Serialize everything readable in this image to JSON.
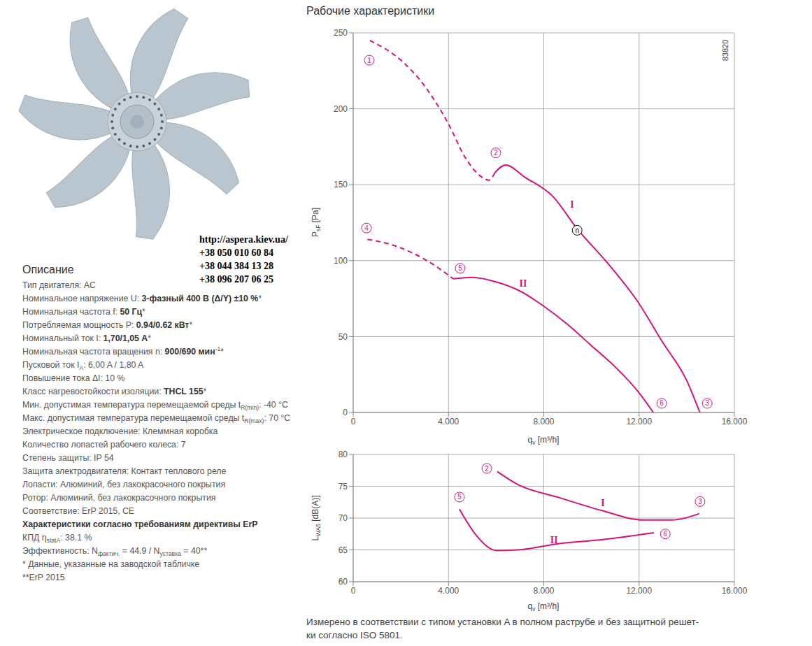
{
  "chart_data": [
    {
      "type": "line",
      "title": "Рабочие характеристики",
      "x_label": {
        "symbol": "q",
        "subscript": "v",
        "unit": "[m³/h]"
      },
      "y_label": {
        "symbol": "P",
        "subscript": "sF",
        "unit": "[Pa]"
      },
      "note": "83820",
      "xlim": [
        0,
        16000
      ],
      "ylim": [
        0,
        250
      ],
      "xticks": [
        0,
        {
          "value": 4000,
          "label": "4.000"
        },
        {
          "value": 8000,
          "label": "8.000"
        },
        {
          "value": 12000,
          "label": "12.000"
        },
        {
          "value": 16000,
          "label": "16.000"
        }
      ],
      "yticks": [
        0,
        50,
        100,
        150,
        200,
        250
      ],
      "grid": true,
      "series": [
        {
          "line_style": "dashed",
          "color": "#d4137b",
          "x": [
            700,
            2000,
            3000,
            4000,
            4700,
            5400,
            5700,
            5950
          ],
          "values": [
            245,
            232,
            215,
            190,
            168,
            155,
            153,
            158
          ]
        },
        {
          "line_style": "solid",
          "color": "#d4137b",
          "x": [
            5950,
            6400,
            7200,
            8400,
            9400,
            10700,
            11900,
            13000,
            14000,
            14550
          ],
          "values": [
            158,
            163,
            155,
            142,
            121,
            98,
            74,
            46,
            21,
            0
          ]
        },
        {
          "line_style": "dashed",
          "color": "#d4137b",
          "x": [
            600,
            1500,
            2500,
            3500,
            4200
          ],
          "values": [
            114,
            111,
            105,
            96,
            88
          ]
        },
        {
          "line_style": "solid",
          "color": "#d4137b",
          "x": [
            4200,
            5000,
            6000,
            7000,
            8000,
            9000,
            10000,
            11000,
            12000,
            12600
          ],
          "values": [
            88,
            89,
            86,
            80,
            70,
            58,
            44,
            30,
            13,
            0
          ]
        }
      ],
      "annotations": [
        {
          "text": "1",
          "x": 675,
          "y": 232,
          "marker": "circle",
          "color": "#d4137b"
        },
        {
          "text": "2",
          "x": 5990,
          "y": 171,
          "marker": "circle",
          "color": "#d4137b"
        },
        {
          "text": "3",
          "x": 14860,
          "y": 6,
          "marker": "circle",
          "color": "#d4137b"
        },
        {
          "text": "4",
          "x": 560,
          "y": 121.5,
          "marker": "circle",
          "color": "#d4137b"
        },
        {
          "text": "5",
          "x": 4490,
          "y": 95,
          "marker": "circle",
          "color": "#d4137b"
        },
        {
          "text": "6",
          "x": 12950,
          "y": 6,
          "marker": "circle",
          "color": "#d4137b"
        },
        {
          "text": "I",
          "x": 9190,
          "y": 137,
          "color": "#d4137b"
        },
        {
          "text": "II",
          "x": 7135,
          "y": 85,
          "color": "#d4137b"
        },
        {
          "text": "n",
          "x": 9400,
          "y": 120,
          "marker": "circle",
          "color": "#000000"
        }
      ]
    },
    {
      "type": "line",
      "x_label": {
        "symbol": "q",
        "subscript": "v",
        "unit": "[m³/h]"
      },
      "y_label": {
        "symbol": "L",
        "subscript": "WA5",
        "unit": "[dB(A)]"
      },
      "xlim": [
        0,
        16000
      ],
      "ylim": [
        60,
        80
      ],
      "xticks": [
        0,
        {
          "value": 4000,
          "label": "4.000"
        },
        {
          "value": 8000,
          "label": "8.000"
        },
        {
          "value": 12000,
          "label": "12.000"
        },
        {
          "value": 16000,
          "label": "16.000"
        }
      ],
      "yticks": [
        60,
        65,
        70,
        75,
        80
      ],
      "grid": true,
      "series": [
        {
          "line_style": "solid",
          "color": "#d4137b",
          "x": [
            6050,
            6900,
            8660,
            10420,
            12180,
            13360,
            14530
          ],
          "values": [
            77.3,
            75.3,
            73.2,
            71.2,
            69.7,
            69.7,
            70.7
          ]
        },
        {
          "line_style": "solid",
          "color": "#d4137b",
          "x": [
            4460,
            5140,
            6020,
            6900,
            8660,
            10420,
            12620
          ],
          "values": [
            71.4,
            67.4,
            64.9,
            65,
            66,
            66.6,
            67.7
          ]
        }
      ],
      "annotations": [
        {
          "text": "2",
          "x": 5610,
          "y": 77.8,
          "marker": "circle",
          "color": "#d4137b"
        },
        {
          "text": "5",
          "x": 4460,
          "y": 73.3,
          "marker": "circle",
          "color": "#d4137b"
        },
        {
          "text": "3",
          "x": 14560,
          "y": 72.6,
          "marker": "circle",
          "color": "#d4137b"
        },
        {
          "text": "6",
          "x": 13100,
          "y": 67.5,
          "marker": "circle",
          "color": "#d4137b"
        },
        {
          "text": "I",
          "x": 10480,
          "y": 72.4,
          "color": "#d4137b"
        },
        {
          "text": "II",
          "x": 8430,
          "y": 66.6,
          "color": "#d4137b"
        }
      ]
    }
  ],
  "contacts": [
    "http://aspera.kiev.ua/",
    "+38 050 010 60 84",
    "+38 044 384 13 28",
    "+38 096 207 06 25"
  ],
  "description": {
    "heading": "Описание",
    "lines": [
      [
        {
          "text": "Тип двигателя: AC"
        }
      ],
      [
        {
          "text": "Номинальное напряжение U: "
        },
        {
          "text": "3-фазный 400 В (Δ/Y) ±10 %",
          "style": "bold"
        },
        {
          "text": "*"
        }
      ],
      [
        {
          "text": "Номинальная частота f: "
        },
        {
          "text": "50 Гц",
          "style": "bold"
        },
        {
          "text": "*"
        }
      ],
      [
        {
          "text": "Потребляемая мощность P: "
        },
        {
          "text": "0.94/0.62 кВт",
          "style": "bold"
        },
        {
          "text": "*"
        }
      ],
      [
        {
          "text": "Номинальный ток I: "
        },
        {
          "text": "1,70/1,05 А",
          "style": "bold"
        },
        {
          "text": "*"
        }
      ],
      [
        {
          "text": "Номинальная частота вращения n: "
        },
        {
          "text": "900/690 мин",
          "style": "bold"
        },
        {
          "text": "-1",
          "style": "sup"
        },
        {
          "text": "*"
        }
      ],
      [
        {
          "text": "Пусковой ток I"
        },
        {
          "text": "A",
          "style": "sub"
        },
        {
          "text": ": 6,00 A / 1,80 A"
        }
      ],
      [
        {
          "text": "Повышение тока ΔI: 10 %"
        }
      ],
      [
        {
          "text": "Класс нагревостойкости изоляции: "
        },
        {
          "text": "THCL 155",
          "style": "bold"
        },
        {
          "text": "*"
        }
      ],
      [
        {
          "text": "Мин. допустимая температура перемещаемой среды t"
        },
        {
          "text": "R(min)",
          "style": "sub"
        },
        {
          "text": ": -40 °C"
        }
      ],
      [
        {
          "text": "Макс. допустимая температура перемещаемой среды t"
        },
        {
          "text": "R(max)",
          "style": "sub"
        },
        {
          "text": ": 70 °C"
        }
      ],
      [
        {
          "text": "Электрическое подключение: Клеммная коробка"
        }
      ],
      [
        {
          "text": "Количество лопастей рабочего колеса: 7"
        }
      ],
      [
        {
          "text": "Степень защиты: IP 54"
        }
      ],
      [
        {
          "text": "Защита электродвигателя: Контакт теплового реле"
        }
      ],
      [
        {
          "text": "Лопасти: Алюминий, без лакокрасочного покрытия"
        }
      ],
      [
        {
          "text": "Ротор: Алюминий, без лакокрасочного покрытия"
        }
      ],
      [
        {
          "text": "Соответствие: ErP 2015, CE"
        }
      ],
      [
        {
          "text": "Характеристики согласно требованиям директивы ErP",
          "style": "bold"
        }
      ],
      [
        {
          "text": "КПД η"
        },
        {
          "text": "statA",
          "style": "sub"
        },
        {
          "text": ": 38.1 %"
        }
      ],
      [
        {
          "text": "Эффективность: N"
        },
        {
          "text": "фактич.",
          "style": "sub"
        },
        {
          "text": " = 44.9 / N"
        },
        {
          "text": "уставка",
          "style": "sub"
        },
        {
          "text": " = 40**"
        }
      ],
      [
        {
          "text": "* Данные, указанные на заводской табличке"
        }
      ],
      [
        {
          "text": "**ErP 2015"
        }
      ]
    ]
  },
  "footnote": [
    "Измерено в соответствии с типом установки A в полном раструбе и без защитной решет-",
    "ки согласно ISO 5801."
  ]
}
